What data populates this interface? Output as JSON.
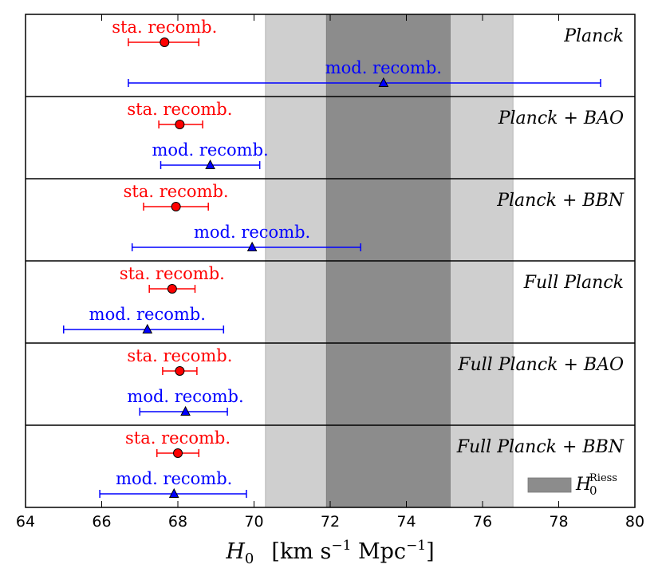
{
  "chart_data": {
    "type": "errorbar",
    "xlabel": "H_0  [km s^-1 Mpc^-1]",
    "xlim": [
      64,
      80
    ],
    "x_ticks": [
      64,
      66,
      68,
      70,
      72,
      74,
      76,
      78,
      80
    ],
    "riess_band": {
      "name": "H_0^Riess",
      "center": 73.5,
      "one_sigma": [
        71.9,
        75.15
      ],
      "two_sigma": [
        70.3,
        76.8
      ]
    },
    "colors": {
      "standard": "#ff0000",
      "modified": "#0000ff",
      "band_inner": "#8c8c8c",
      "band_outer": "#cfcfcf"
    },
    "panels": [
      {
        "dataset": "Planck",
        "label_parts": [
          "Planck"
        ],
        "points": [
          {
            "label": "sta. recomb.",
            "marker": "circle",
            "value": 67.65,
            "low": 66.7,
            "high": 68.55
          },
          {
            "label": "mod. recomb.",
            "marker": "triangle",
            "value": 73.4,
            "low": 66.7,
            "high": 79.1
          }
        ]
      },
      {
        "dataset": "Planck + BAO",
        "label_parts": [
          "Planck",
          "+",
          "BAO"
        ],
        "points": [
          {
            "label": "sta. recomb.",
            "marker": "circle",
            "value": 68.05,
            "low": 67.5,
            "high": 68.65
          },
          {
            "label": "mod. recomb.",
            "marker": "triangle",
            "value": 68.85,
            "low": 67.55,
            "high": 70.15
          }
        ]
      },
      {
        "dataset": "Planck + BBN",
        "label_parts": [
          "Planck",
          "+",
          "BBN"
        ],
        "points": [
          {
            "label": "sta. recomb.",
            "marker": "circle",
            "value": 67.95,
            "low": 67.1,
            "high": 68.8
          },
          {
            "label": "mod. recomb.",
            "marker": "triangle",
            "value": 69.95,
            "low": 66.8,
            "high": 72.8
          }
        ]
      },
      {
        "dataset": "Full Planck",
        "label_parts": [
          "Full Planck"
        ],
        "points": [
          {
            "label": "sta. recomb.",
            "marker": "circle",
            "value": 67.85,
            "low": 67.25,
            "high": 68.45
          },
          {
            "label": "mod. recomb.",
            "marker": "triangle",
            "value": 67.2,
            "low": 65.0,
            "high": 69.2
          }
        ]
      },
      {
        "dataset": "Full Planck + BAO",
        "label_parts": [
          "Full Planck",
          "+",
          "BAO"
        ],
        "points": [
          {
            "label": "sta. recomb.",
            "marker": "circle",
            "value": 68.05,
            "low": 67.6,
            "high": 68.5
          },
          {
            "label": "mod. recomb.",
            "marker": "triangle",
            "value": 68.2,
            "low": 67.0,
            "high": 69.3
          }
        ]
      },
      {
        "dataset": "Full Planck + BBN",
        "label_parts": [
          "Full Planck",
          "+",
          "BBN"
        ],
        "points": [
          {
            "label": "sta. recomb.",
            "marker": "circle",
            "value": 68.0,
            "low": 67.45,
            "high": 68.55
          },
          {
            "label": "mod. recomb.",
            "marker": "triangle",
            "value": 67.9,
            "low": 65.95,
            "high": 69.8
          }
        ]
      }
    ]
  }
}
